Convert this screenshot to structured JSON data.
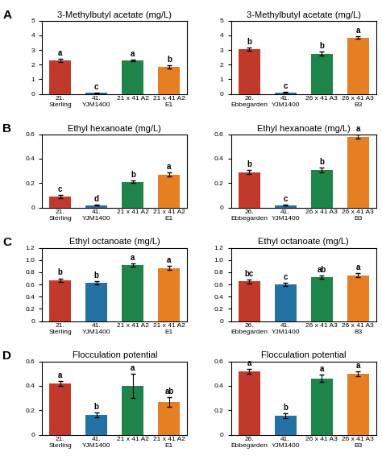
{
  "chart_data": [
    {
      "type": "bar",
      "title": "3-Methylbutyl acetate (mg/L)",
      "panel_label": "A",
      "categories": [
        "21. Sterling",
        "41. YJM1400",
        "21 x 41 A2",
        "21 x 41 A2\nE1"
      ],
      "values": [
        2.3,
        0.08,
        2.3,
        1.85
      ],
      "errors": [
        0.1,
        0.02,
        0.06,
        0.1
      ],
      "annotations": [
        "a",
        "c",
        "a",
        "b"
      ],
      "colors": [
        "#c0392b",
        "#2471a3",
        "#1e8449",
        "#e67e22"
      ],
      "ylim": [
        0,
        5
      ],
      "yticks": [
        0,
        1,
        2,
        3,
        4,
        5
      ]
    },
    {
      "type": "bar",
      "title": "3-Methylbutyl acetate (mg/L)",
      "categories": [
        "26.\nEbbegarden",
        "41. YJM1400",
        "26 x 41 A3",
        "26 x 41 A3\nB3"
      ],
      "values": [
        3.05,
        0.1,
        2.75,
        3.85
      ],
      "errors": [
        0.1,
        0.02,
        0.12,
        0.1
      ],
      "annotations": [
        "b",
        "c",
        "b",
        "a"
      ],
      "colors": [
        "#c0392b",
        "#2471a3",
        "#1e8449",
        "#e67e22"
      ],
      "ylim": [
        0,
        5
      ],
      "yticks": [
        0,
        1,
        2,
        3,
        4,
        5
      ]
    },
    {
      "type": "bar",
      "title": "Ethyl hexanoate (mg/L)",
      "panel_label": "B",
      "categories": [
        "21. Sterling",
        "41. YJM1400",
        "21 x 41 A2",
        "21 x 41 A2\nE1"
      ],
      "values": [
        0.09,
        0.02,
        0.21,
        0.27
      ],
      "errors": [
        0.01,
        0.005,
        0.01,
        0.015
      ],
      "annotations": [
        "c",
        "d",
        "b",
        "a"
      ],
      "colors": [
        "#c0392b",
        "#2471a3",
        "#1e8449",
        "#e67e22"
      ],
      "ylim": [
        0,
        0.6
      ],
      "yticks": [
        0,
        0.2,
        0.4,
        0.6
      ]
    },
    {
      "type": "bar",
      "title": "Ethyl hexanoate (mg/L)",
      "categories": [
        "26.\nEbbegarden",
        "41. YJM1400",
        "26 x 41 A3",
        "26 x 41 A3\nB3"
      ],
      "values": [
        0.29,
        0.02,
        0.31,
        0.58
      ],
      "errors": [
        0.015,
        0.005,
        0.02,
        0.015
      ],
      "annotations": [
        "b",
        "c",
        "b",
        "a"
      ],
      "colors": [
        "#c0392b",
        "#2471a3",
        "#1e8449",
        "#e67e22"
      ],
      "ylim": [
        0,
        0.6
      ],
      "yticks": [
        0,
        0.2,
        0.4,
        0.6
      ]
    },
    {
      "type": "bar",
      "title": "Ethyl octanoate (mg/L)",
      "panel_label": "C",
      "categories": [
        "21. Sterling",
        "41. YJM1400",
        "21 x 41 A2",
        "21 x 41 A2\nE1"
      ],
      "values": [
        0.67,
        0.63,
        0.92,
        0.87
      ],
      "errors": [
        0.03,
        0.03,
        0.03,
        0.03
      ],
      "annotations": [
        "b",
        "b",
        "a",
        "a"
      ],
      "colors": [
        "#c0392b",
        "#2471a3",
        "#1e8449",
        "#e67e22"
      ],
      "ylim": [
        0,
        1.2
      ],
      "yticks": [
        0,
        0.2,
        0.4,
        0.6,
        0.8,
        1.0,
        1.2
      ]
    },
    {
      "type": "bar",
      "title": "Ethyl octanoate (mg/L)",
      "categories": [
        "26.\nEbbegarden",
        "41. YJM1400",
        "26 x 41 A3",
        "26 x 41 A3\nB3"
      ],
      "values": [
        0.65,
        0.6,
        0.72,
        0.75
      ],
      "errors": [
        0.03,
        0.03,
        0.03,
        0.03
      ],
      "annotations": [
        "bc",
        "c",
        "ab",
        "a"
      ],
      "colors": [
        "#c0392b",
        "#2471a3",
        "#1e8449",
        "#e67e22"
      ],
      "ylim": [
        0,
        1.2
      ],
      "yticks": [
        0,
        0.2,
        0.4,
        0.6,
        0.8,
        1.0,
        1.2
      ]
    },
    {
      "type": "bar",
      "title": "Flocculation potential",
      "panel_label": "D",
      "categories": [
        "21. Sterling",
        "41. YJM1400",
        "21 x 41 A2",
        "21 x 41 A2\nE1"
      ],
      "values": [
        0.42,
        0.16,
        0.4,
        0.27
      ],
      "errors": [
        0.02,
        0.02,
        0.1,
        0.04
      ],
      "annotations": [
        "a",
        "b",
        "a",
        "ab"
      ],
      "colors": [
        "#c0392b",
        "#2471a3",
        "#1e8449",
        "#e67e22"
      ],
      "ylim": [
        0,
        0.6
      ],
      "yticks": [
        0,
        0.2,
        0.4,
        0.6
      ]
    },
    {
      "type": "bar",
      "title": "Flocculation potential",
      "categories": [
        "26.\nEbbegarden",
        "41. YJM1400",
        "26 x 41 A3",
        "26 x 41 A3\nB3"
      ],
      "values": [
        0.52,
        0.155,
        0.46,
        0.5
      ],
      "errors": [
        0.02,
        0.02,
        0.03,
        0.02
      ],
      "annotations": [
        "a",
        "b",
        "a",
        "a"
      ],
      "colors": [
        "#c0392b",
        "#2471a3",
        "#1e8449",
        "#e67e22"
      ],
      "ylim": [
        0,
        0.6
      ],
      "yticks": [
        0,
        0.2,
        0.4,
        0.6
      ]
    }
  ]
}
